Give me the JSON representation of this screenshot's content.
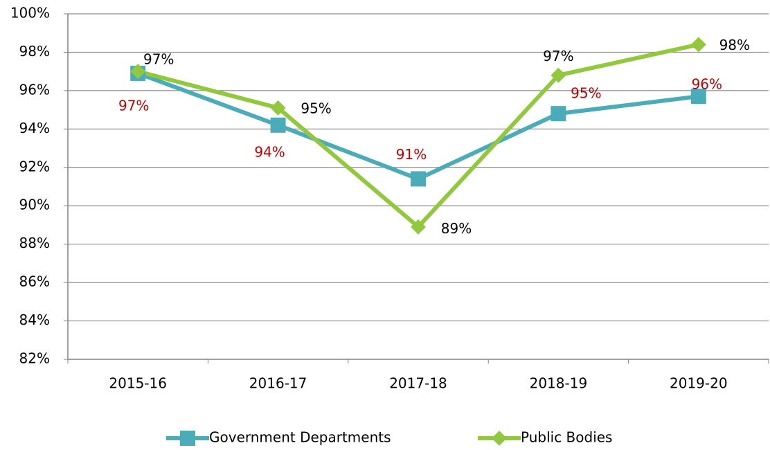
{
  "chart_data": {
    "type": "line",
    "categories": [
      "2015-16",
      "2016-17",
      "2017-18",
      "2018-19",
      "2019-20"
    ],
    "series": [
      {
        "name": "Government Departments",
        "color": "#4bacb9",
        "marker": "square",
        "label_color": "#c00000",
        "values": [
          96.9,
          94.2,
          91.4,
          94.8,
          95.7
        ],
        "value_labels": [
          "97%",
          "94%",
          "91%",
          "95%",
          "96%"
        ]
      },
      {
        "name": "Public Bodies",
        "color": "#92c83e",
        "marker": "diamond",
        "label_color": "#000000",
        "values": [
          97.0,
          95.1,
          88.9,
          96.8,
          98.4
        ],
        "value_labels": [
          "97%",
          "95%",
          "89%",
          "97%",
          "98%"
        ]
      }
    ],
    "ylim": [
      82,
      100
    ],
    "yticks": [
      {
        "value": 82,
        "label": "82%"
      },
      {
        "value": 84,
        "label": "84%"
      },
      {
        "value": 86,
        "label": "86%"
      },
      {
        "value": 88,
        "label": "88%"
      },
      {
        "value": 90,
        "label": "90%"
      },
      {
        "value": 92,
        "label": "92%"
      },
      {
        "value": 94,
        "label": "94%"
      },
      {
        "value": 96,
        "label": "96%"
      },
      {
        "value": 98,
        "label": "98%"
      },
      {
        "value": 100,
        "label": "100%"
      }
    ],
    "grid": true,
    "legend": "bottom"
  }
}
